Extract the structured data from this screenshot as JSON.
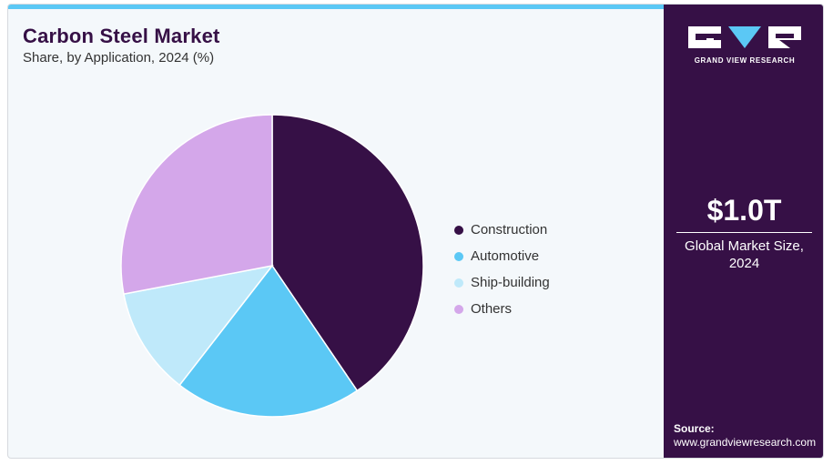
{
  "header": {
    "title": "Carbon Steel Market",
    "subtitle": "Share, by Application, 2024 (%)"
  },
  "colors": {
    "accent": "#5bc8f5",
    "panel": "#361046",
    "background": "#f4f8fb"
  },
  "chart_data": {
    "type": "pie",
    "title": "Carbon Steel Market",
    "subtitle": "Share, by Application, 2024 (%)",
    "categories": [
      "Construction",
      "Automotive",
      "Ship-building",
      "Others"
    ],
    "values": [
      40.5,
      20.0,
      11.5,
      28.0
    ],
    "colors": [
      "#361046",
      "#5bc8f5",
      "#bfe9fa",
      "#d4a7ea"
    ],
    "legend_position": "right",
    "start_angle_deg": 0,
    "direction": "clockwise"
  },
  "side_panel": {
    "logo_icon": "gvr-logo-icon",
    "logo_text": "GRAND VIEW RESEARCH",
    "market_value": "$1.0T",
    "market_label_line1": "Global Market Size,",
    "market_label_line2": "2024",
    "source_label": "Source:",
    "source_url": "www.grandviewresearch.com"
  }
}
